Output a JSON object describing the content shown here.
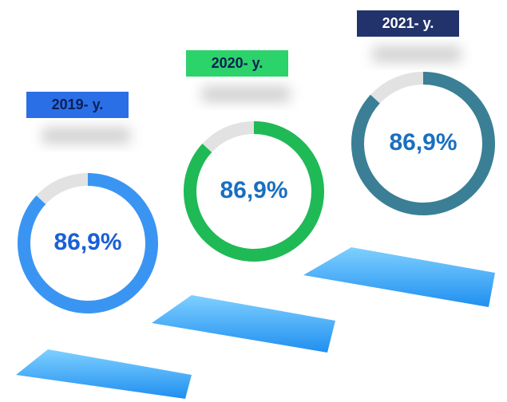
{
  "chart_data": [
    {
      "type": "donut",
      "title": "2019- y.",
      "values": [
        86.9
      ],
      "value_labels": [
        "86,9%"
      ],
      "color": "#3a95f2",
      "title_color": "#2a6fe6"
    },
    {
      "type": "donut",
      "title": "2020- y.",
      "values": [
        86.9
      ],
      "value_labels": [
        "86,9%"
      ],
      "color": "#1fba55",
      "title_color": "#2bd36a"
    },
    {
      "type": "donut",
      "title": "2021- y.",
      "values": [
        86.9
      ],
      "value_labels": [
        "86,9%"
      ],
      "color": "#3a7f95",
      "title_color": "#22336b"
    }
  ]
}
